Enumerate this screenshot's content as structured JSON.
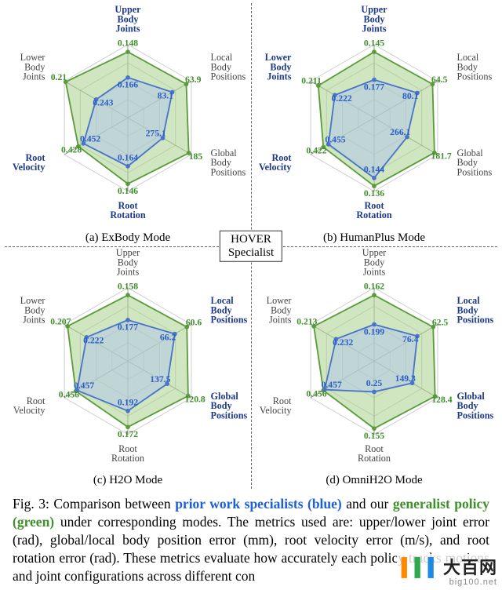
{
  "figure": {
    "center_label_1": "HOVER",
    "center_label_2": "Specialist",
    "style": {
      "grid_color": "#cfcfcf",
      "axis_color": "#9a9a9a",
      "green_fill": "#a8d18d",
      "green_fill_opacity": 0.55,
      "green_stroke": "#5a9b3c",
      "blue_fill": "#b3c6e7",
      "blue_fill_opacity": 0.55,
      "blue_stroke": "#4a74c9",
      "green_value_color": "#3f8f2b",
      "blue_value_color": "#2a5dc7",
      "label_color_plain": "#444444",
      "label_color_bold": "#1e3a8a",
      "rings": 4,
      "marker_radius": 2.8
    },
    "panels": [
      {
        "id": "a",
        "caption": "(a) ExBody Mode",
        "axes": [
          {
            "label": "Upper\nBody\nJoints",
            "bold": true,
            "angle": -90
          },
          {
            "label": "Local\nBody\nPositions",
            "bold": false,
            "angle": -30
          },
          {
            "label": "Global\nBody\nPositions",
            "bold": false,
            "angle": 30
          },
          {
            "label": "Root\nRotation",
            "bold": true,
            "angle": 90
          },
          {
            "label": "Root\nVelocity",
            "bold": true,
            "angle": 150
          },
          {
            "label": "Lower\nBody\nJoints",
            "bold": false,
            "angle": 210
          }
        ],
        "series": [
          {
            "name": "green",
            "role": "generalist",
            "values": [
              0.148,
              63.9,
              185.0,
              0.146,
              0.428,
              0.21
            ],
            "radii": [
              0.9,
              0.92,
              0.96,
              0.9,
              0.78,
              0.98
            ]
          },
          {
            "name": "blue",
            "role": "specialist",
            "values": [
              0.166,
              83.1,
              275.1,
              0.164,
              0.452,
              0.243
            ],
            "radii": [
              0.55,
              0.7,
              0.55,
              0.66,
              0.7,
              0.5
            ]
          }
        ]
      },
      {
        "id": "b",
        "caption": "(b) HumanPlus Mode",
        "axes": [
          {
            "label": "Upper\nBody\nJoints",
            "bold": true,
            "angle": -90
          },
          {
            "label": "Local\nBody\nPositions",
            "bold": false,
            "angle": -30
          },
          {
            "label": "Global\nBody\nPositions",
            "bold": false,
            "angle": 30
          },
          {
            "label": "Root\nRotation",
            "bold": true,
            "angle": 90
          },
          {
            "label": "Root\nVelocity",
            "bold": true,
            "angle": 150
          },
          {
            "label": "Lower\nBody\nJoints",
            "bold": true,
            "angle": 210
          }
        ],
        "series": [
          {
            "name": "green",
            "role": "generalist",
            "values": [
              0.145,
              64.5,
              181.7,
              0.136,
              0.422,
              0.211
            ],
            "radii": [
              0.9,
              0.92,
              0.95,
              0.93,
              0.8,
              0.88
            ]
          },
          {
            "name": "blue",
            "role": "specialist",
            "values": [
              0.177,
              80.1,
              266.1,
              0.144,
              0.455,
              0.222
            ],
            "radii": [
              0.52,
              0.68,
              0.52,
              0.82,
              0.72,
              0.62
            ]
          }
        ]
      },
      {
        "id": "c",
        "caption": "(c) H2O Mode",
        "axes": [
          {
            "label": "Upper\nBody\nJoints",
            "bold": false,
            "angle": -90
          },
          {
            "label": "Local\nBody\nPositions",
            "bold": true,
            "angle": -30
          },
          {
            "label": "Global\nBody\nPositions",
            "bold": true,
            "angle": 30
          },
          {
            "label": "Root\nRotation",
            "bold": false,
            "angle": 90
          },
          {
            "label": "Root\nVelocity",
            "bold": false,
            "angle": 150
          },
          {
            "label": "Lower\nBody\nJoints",
            "bold": false,
            "angle": 210
          }
        ],
        "series": [
          {
            "name": "green",
            "role": "generalist",
            "values": [
              0.158,
              60.6,
              120.8,
              0.172,
              0.456,
              0.207
            ],
            "radii": [
              0.9,
              0.93,
              0.95,
              0.9,
              0.82,
              0.95
            ]
          },
          {
            "name": "blue",
            "role": "specialist",
            "values": [
              0.177,
              66.2,
              137.5,
              0.192,
              0.457,
              0.222
            ],
            "radii": [
              0.56,
              0.74,
              0.62,
              0.68,
              0.8,
              0.65
            ]
          }
        ]
      },
      {
        "id": "d",
        "caption": "(d) OmniH2O Mode",
        "axes": [
          {
            "label": "Upper\nBody\nJoints",
            "bold": false,
            "angle": -90
          },
          {
            "label": "Local\nBody\nPositions",
            "bold": true,
            "angle": -30
          },
          {
            "label": "Global\nBody\nPositions",
            "bold": true,
            "angle": 30
          },
          {
            "label": "Root\nRotation",
            "bold": false,
            "angle": 90
          },
          {
            "label": "Root\nVelocity",
            "bold": false,
            "angle": 150
          },
          {
            "label": "Lower\nBody\nJoints",
            "bold": false,
            "angle": 210
          }
        ],
        "series": [
          {
            "name": "green",
            "role": "generalist",
            "values": [
              0.162,
              62.5,
              128.4,
              0.155,
              0.456,
              0.213
            ],
            "radii": [
              0.9,
              0.93,
              0.96,
              0.92,
              0.8,
              0.95
            ]
          },
          {
            "name": "blue",
            "role": "specialist",
            "values": [
              0.199,
              76.4,
              149.3,
              0.25,
              0.457,
              0.232
            ],
            "radii": [
              0.5,
              0.68,
              0.6,
              0.42,
              0.78,
              0.6
            ]
          }
        ]
      }
    ]
  },
  "caption": {
    "prefix": "Fig. 3: Comparison between ",
    "blue": "prior work specialists (blue)",
    "mid": " and our ",
    "green": "generalist policy (green)",
    "rest": " under corresponding modes. The metrics used are: upper/lower joint error (rad), global/local body position error (mm), root velocity error (m/s), and root rotation error (rad). These metrics evaluate how accurately each policy tracks motions and joint configurations across different con"
  },
  "watermark": {
    "main": "大百网",
    "sub": "big100.net"
  }
}
